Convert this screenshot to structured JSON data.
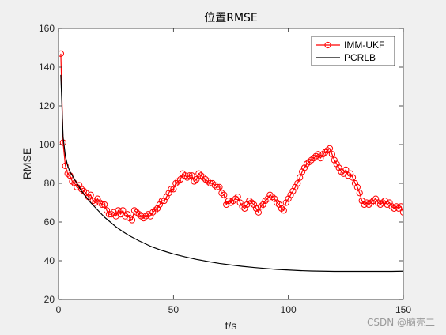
{
  "chart_data": {
    "type": "line",
    "title": "位置RMSE",
    "xlabel": "t/s",
    "ylabel": "RMSE",
    "xlim": [
      0,
      150
    ],
    "ylim": [
      20,
      160
    ],
    "xticks": [
      0,
      50,
      100,
      150
    ],
    "yticks": [
      20,
      40,
      60,
      80,
      100,
      120,
      140,
      160
    ],
    "legend_position": "top-right",
    "series": [
      {
        "name": "IMM-UKF",
        "color": "#ff0000",
        "marker": "circle",
        "line": "solid",
        "x": [
          1,
          2,
          3,
          4,
          5,
          6,
          7,
          8,
          9,
          10,
          11,
          12,
          13,
          14,
          15,
          16,
          17,
          18,
          19,
          20,
          21,
          22,
          23,
          24,
          25,
          26,
          27,
          28,
          29,
          30,
          31,
          32,
          33,
          34,
          35,
          36,
          37,
          38,
          39,
          40,
          41,
          42,
          43,
          44,
          45,
          46,
          47,
          48,
          49,
          50,
          51,
          52,
          53,
          54,
          55,
          56,
          57,
          58,
          59,
          60,
          61,
          62,
          63,
          64,
          65,
          66,
          67,
          68,
          69,
          70,
          71,
          72,
          73,
          74,
          75,
          76,
          77,
          78,
          79,
          80,
          81,
          82,
          83,
          84,
          85,
          86,
          87,
          88,
          89,
          90,
          91,
          92,
          93,
          94,
          95,
          96,
          97,
          98,
          99,
          100,
          101,
          102,
          103,
          104,
          105,
          106,
          107,
          108,
          109,
          110,
          111,
          112,
          113,
          114,
          115,
          116,
          117,
          118,
          119,
          120,
          121,
          122,
          123,
          124,
          125,
          126,
          127,
          128,
          129,
          130,
          131,
          132,
          133,
          134,
          135,
          136,
          137,
          138,
          139,
          140,
          141,
          142,
          143,
          144,
          145,
          146,
          147,
          148,
          149,
          150
        ],
        "y": [
          147,
          101,
          89,
          85,
          84,
          81,
          80,
          78,
          79,
          77,
          76,
          75,
          73,
          74,
          71,
          70,
          72,
          70,
          69,
          69,
          66,
          64,
          64,
          65,
          63,
          66,
          64,
          66,
          63,
          64,
          62,
          61,
          66,
          65,
          64,
          63,
          62,
          63,
          64,
          63,
          65,
          66,
          67,
          69,
          71,
          71,
          73,
          75,
          77,
          77,
          80,
          81,
          82,
          85,
          84,
          83,
          84,
          84,
          81,
          82,
          85,
          84,
          83,
          82,
          81,
          80,
          80,
          79,
          78,
          78,
          75,
          74,
          69,
          71,
          70,
          71,
          72,
          73,
          70,
          68,
          67,
          69,
          71,
          70,
          69,
          67,
          65,
          68,
          69,
          71,
          72,
          74,
          73,
          72,
          70,
          69,
          67,
          66,
          70,
          72,
          74,
          76,
          78,
          80,
          83,
          86,
          88,
          90,
          91,
          92,
          93,
          94,
          95,
          93,
          95,
          96,
          97,
          98,
          95,
          92,
          90,
          88,
          86,
          85,
          87,
          84,
          85,
          83,
          80,
          78,
          75,
          71,
          69,
          70,
          69,
          70,
          71,
          72,
          70,
          69,
          70,
          71,
          69,
          70,
          68,
          67,
          68,
          67,
          68,
          65
        ]
      },
      {
        "name": "PCRLB",
        "color": "#000000",
        "marker": "none",
        "line": "solid",
        "x": [
          1,
          2,
          3,
          4,
          5,
          6,
          7,
          8,
          9,
          10,
          12,
          14,
          16,
          18,
          20,
          22,
          25,
          28,
          31,
          35,
          40,
          45,
          50,
          55,
          60,
          65,
          70,
          75,
          80,
          85,
          90,
          95,
          100,
          105,
          110,
          115,
          120,
          125,
          130,
          135,
          140,
          145,
          150
        ],
        "y": [
          136,
          104,
          94,
          89,
          86,
          84,
          82,
          80,
          78,
          76,
          73,
          70,
          67.5,
          65,
          62.5,
          60.5,
          57.5,
          55,
          52.8,
          50.3,
          47.5,
          45.3,
          43.5,
          42,
          40.7,
          39.6,
          38.6,
          37.8,
          37.1,
          36.5,
          36,
          35.5,
          35.2,
          34.9,
          34.7,
          34.6,
          34.5,
          34.5,
          34.5,
          34.5,
          34.5,
          34.5,
          34.6
        ]
      }
    ]
  },
  "watermark": "CSDN @脑壳二"
}
